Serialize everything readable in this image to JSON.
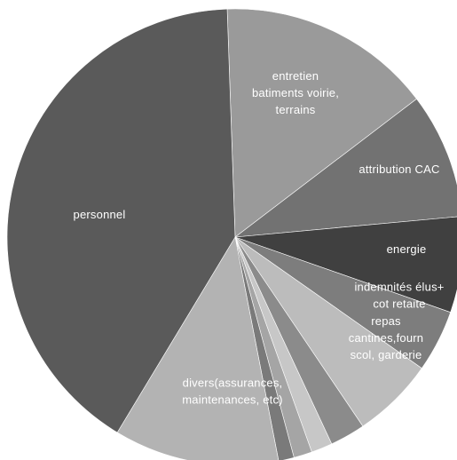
{
  "chart_data": {
    "type": "pie",
    "slices": [
      {
        "label": "entretien batiments voirie, terrains",
        "lines": [
          "entretien",
          "batiments  voirie,",
          "terrains"
        ],
        "value": 15.2,
        "color": "#9a9a9a"
      },
      {
        "label": "attribution CAC",
        "lines": [
          "attribution  CAC"
        ],
        "value": 8.9,
        "color": "#727272"
      },
      {
        "label": "energie",
        "lines": [
          "energie"
        ],
        "value": 6.8,
        "color": "#404040"
      },
      {
        "label": "indemnités élus+ cot retaite",
        "lines": [
          "indemnités  élus+",
          "cot retaite"
        ],
        "value": 4.4,
        "color": "#7d7d7d"
      },
      {
        "label": "repas cantines,fourn scol, garderie",
        "lines": [
          "repas",
          "cantines,fourn",
          "scol, garderie"
        ],
        "value": 5.8,
        "color": "#bcbcbc"
      },
      {
        "label": "",
        "lines": [],
        "value": 2.5,
        "color": "#8b8b8b"
      },
      {
        "label": "",
        "lines": [],
        "value": 1.5,
        "color": "#c7c7c7"
      },
      {
        "label": "",
        "lines": [],
        "value": 1.3,
        "color": "#a5a5a5"
      },
      {
        "label": "",
        "lines": [],
        "value": 1.1,
        "color": "#7a7a7a"
      },
      {
        "label": "divers(assurances, maintenances, etc)",
        "lines": [
          "divers(assurances,",
          "maintenances,  etc)"
        ],
        "value": 11.7,
        "color": "#b3b3b3"
      },
      {
        "label": "personnel",
        "lines": [
          "personnel"
        ],
        "value": 40.8,
        "color": "#5a5a5a"
      }
    ]
  }
}
